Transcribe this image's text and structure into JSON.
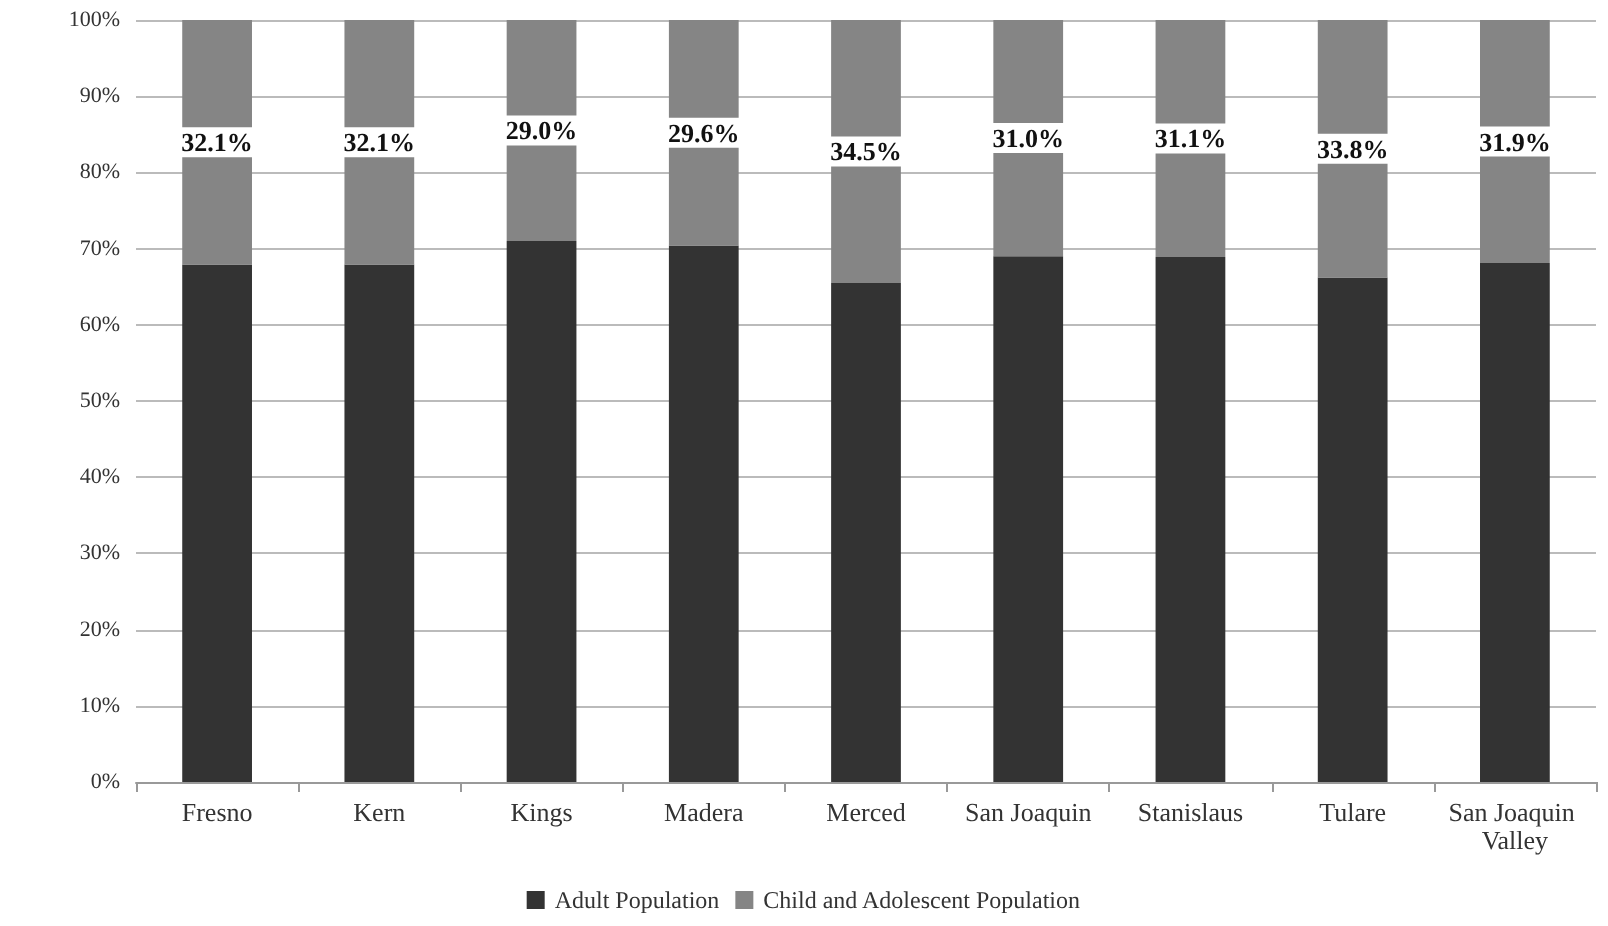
{
  "chart_data": {
    "type": "bar",
    "stacked": true,
    "categories": [
      "Fresno",
      "Kern",
      "Kings",
      "Madera",
      "Merced",
      "San Joaquin",
      "Stanislaus",
      "Tulare",
      "San Joaquin Valley"
    ],
    "series": [
      {
        "name": "Adult Population",
        "color": "#333333",
        "values": [
          67.9,
          67.9,
          71.0,
          70.4,
          65.5,
          69.0,
          68.9,
          66.2,
          68.1
        ]
      },
      {
        "name": "Child and Adolescent Population",
        "color": "#858585",
        "values": [
          32.1,
          32.1,
          29.0,
          29.6,
          34.5,
          31.0,
          31.1,
          33.8,
          31.9
        ],
        "value_labels": [
          "32.1%",
          "32.1%",
          "29.0%",
          "29.6%",
          "34.5%",
          "31.0%",
          "31.1%",
          "33.8%",
          "31.9%"
        ]
      }
    ],
    "ylim": [
      0,
      100
    ],
    "yticks": [
      {
        "value": 0,
        "label": "0%"
      },
      {
        "value": 10,
        "label": "10%"
      },
      {
        "value": 20,
        "label": "20%"
      },
      {
        "value": 30,
        "label": "30%"
      },
      {
        "value": 40,
        "label": "40%"
      },
      {
        "value": 50,
        "label": "50%"
      },
      {
        "value": 60,
        "label": "60%"
      },
      {
        "value": 70,
        "label": "70%"
      },
      {
        "value": 80,
        "label": "80%"
      },
      {
        "value": 90,
        "label": "90%"
      },
      {
        "value": 100,
        "label": "100%"
      }
    ],
    "grid": "y",
    "legend": "bottom"
  }
}
